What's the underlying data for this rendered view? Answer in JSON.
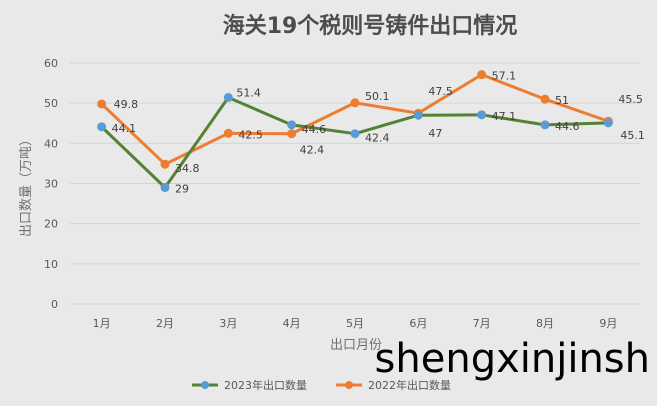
{
  "chart_data": {
    "type": "line",
    "title": "海关19个税则号铸件出口情况",
    "xlabel": "出口月份",
    "ylabel": "出口数量（万吨）",
    "categories": [
      "1月",
      "2月",
      "3月",
      "4月",
      "5月",
      "6月",
      "7月",
      "8月",
      "9月"
    ],
    "ylim": [
      0,
      60
    ],
    "yticks": [
      0,
      10,
      20,
      30,
      40,
      50,
      60
    ],
    "grid": true,
    "legend_position": "bottom",
    "series": [
      {
        "name": "2023年出口数量",
        "color": "#548235",
        "marker_color": "#5b9bd5",
        "values": [
          44.1,
          29,
          51.4,
          44.6,
          42.4,
          47,
          47.1,
          44.6,
          45.1
        ]
      },
      {
        "name": "2022年出口数量",
        "color": "#ed7d31",
        "marker_color": "#ed7d31",
        "values": [
          49.8,
          34.8,
          42.5,
          42.4,
          50.1,
          47.5,
          57.1,
          51,
          45.5
        ]
      }
    ]
  },
  "watermark": "shengxinjinsh"
}
